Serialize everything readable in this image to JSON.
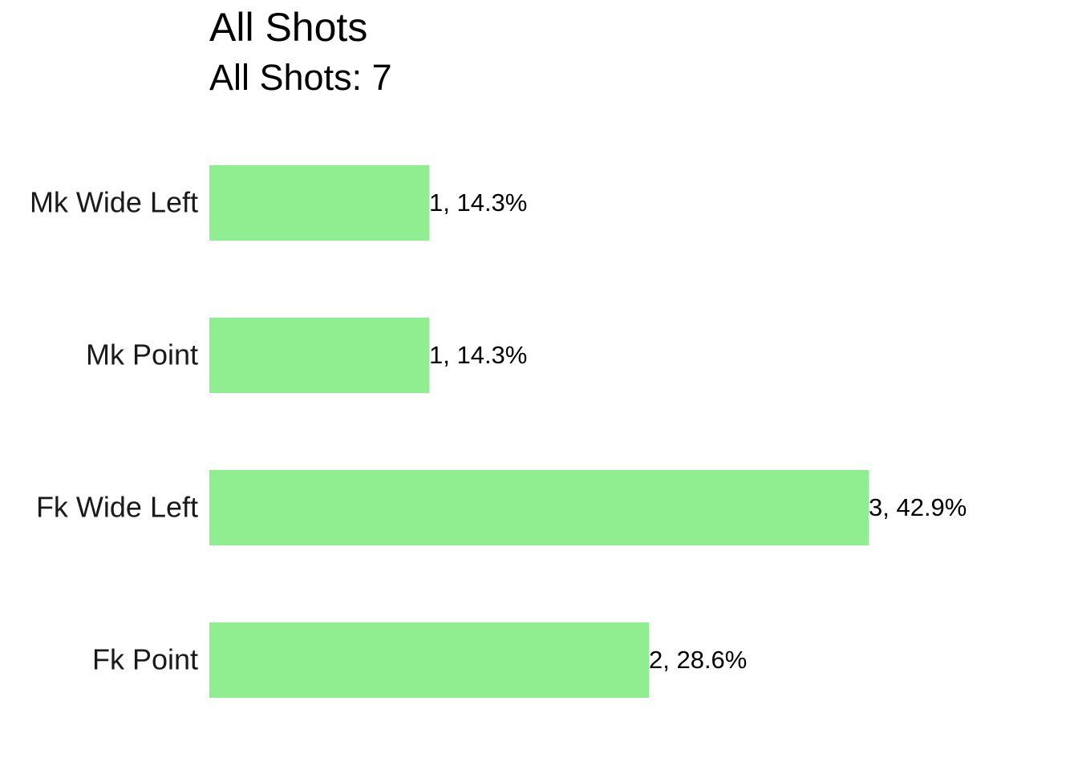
{
  "chart_data": {
    "type": "bar",
    "orientation": "horizontal",
    "title": "All Shots",
    "subtitle": "All Shots: 7",
    "categories": [
      "Mk Wide Left",
      "Mk Point",
      "Fk Wide Left",
      "Fk Point"
    ],
    "values": [
      1,
      1,
      3,
      2
    ],
    "value_labels": [
      "1, 14.3%",
      "1, 14.3%",
      "3, 42.9%",
      "2, 28.6%"
    ],
    "color": "#90ee90"
  }
}
